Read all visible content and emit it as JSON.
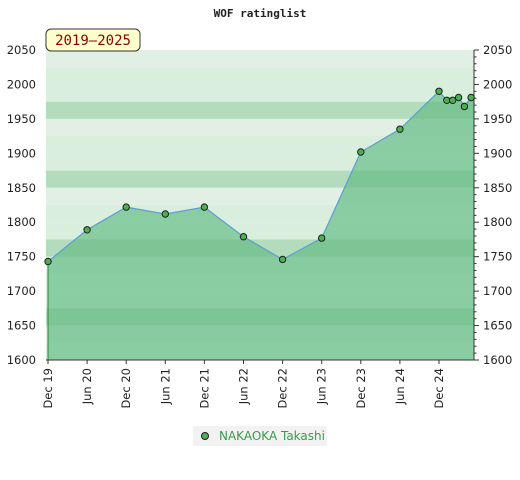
{
  "chart_data": {
    "type": "area",
    "title": "WOF ratinglist",
    "period_badge": "2019–2025",
    "ylim": [
      1600,
      2050
    ],
    "y_ticks": [
      1600,
      1650,
      1700,
      1750,
      1800,
      1850,
      1900,
      1950,
      2000,
      2050
    ],
    "x_ticks": [
      "Dec 19",
      "Jun 20",
      "Dec 20",
      "Jun 21",
      "Dec 21",
      "Jun 22",
      "Dec 22",
      "Jun 23",
      "Dec 23",
      "Jun 24",
      "Dec 24"
    ],
    "grid": true,
    "legend_position": "bottom-center",
    "series": [
      {
        "name": "NAKAOKA Takashi",
        "x": [
          0,
          1,
          2,
          3,
          4,
          5,
          6,
          7,
          8,
          9,
          10,
          10.2,
          10.35,
          10.5,
          10.65,
          10.82
        ],
        "values": [
          1743,
          1789,
          1822,
          1812,
          1822,
          1779,
          1746,
          1777,
          1902,
          1935,
          1990,
          1977,
          1977,
          1981,
          1968,
          1981
        ]
      }
    ],
    "colors": {
      "line": "#5a9fd4",
      "marker_fill": "#4caf50",
      "marker_stroke": "#1f1f1f",
      "area_fill": "#6cc08a",
      "band_light": "#f1f8f2",
      "band_mid": "#d9eedd",
      "band_dark": "#bfe3c7",
      "badge_bg": "#ffffcc"
    }
  }
}
